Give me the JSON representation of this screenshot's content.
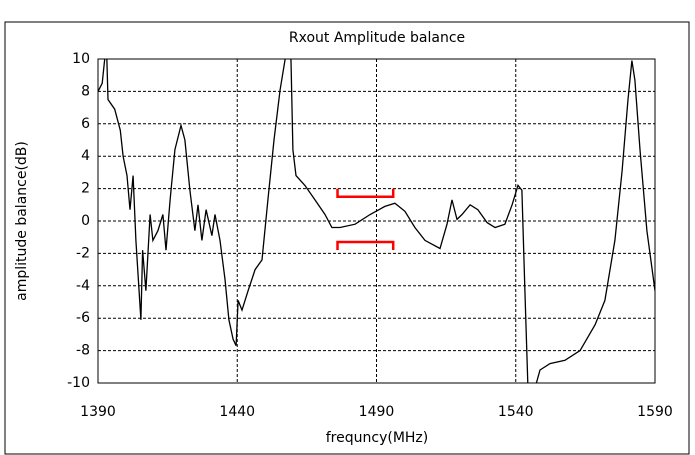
{
  "chart_data": {
    "type": "line",
    "title": "Rxout Amplitude balance",
    "x_label": "frequncy(MHz)",
    "y_label": "amplitude balance(dB)",
    "x": [
      1390,
      1391.5,
      1393,
      1393.6,
      1396,
      1398,
      1399,
      1400.4,
      1401.5,
      1402.6,
      1403.6,
      1405.4,
      1406,
      1407.2,
      1408.7,
      1409.7,
      1411.5,
      1413.3,
      1414.4,
      1415.9,
      1417.6,
      1419.8,
      1421.2,
      1423,
      1424.8,
      1425.9,
      1427.3,
      1428.8,
      1430.9,
      1432,
      1433.8,
      1435.6,
      1437,
      1438.5,
      1439.6,
      1440.3,
      1441.7,
      1443.9,
      1446.4,
      1448.9,
      1451,
      1453.2,
      1455.4,
      1457.1,
      1458.2,
      1459.3,
      1460,
      1461.1,
      1464.3,
      1467.9,
      1471.5,
      1474,
      1476.9,
      1482.3,
      1487.7,
      1493,
      1496.6,
      1500.2,
      1503.8,
      1507.4,
      1512.8,
      1515.3,
      1517.1,
      1518.9,
      1520.7,
      1523.6,
      1526.4,
      1529.7,
      1532.6,
      1536.1,
      1538.7,
      1540.8,
      1542.2,
      1543.3,
      1544.4,
      1545.8,
      1548.7,
      1552.3,
      1557.7,
      1563.1,
      1568.5,
      1572,
      1575.6,
      1578.2,
      1580.3,
      1581.7,
      1582.8,
      1584.6,
      1587.1,
      1590
    ],
    "values": [
      8,
      8.5,
      11,
      7.5,
      6.9,
      5.6,
      4,
      2.8,
      0.7,
      2.8,
      -1.2,
      -6.1,
      -1.8,
      -4.3,
      0.4,
      -1.2,
      -0.6,
      0.4,
      -1.8,
      1.3,
      4.4,
      5.9,
      5,
      1.9,
      -0.6,
      1,
      -1.2,
      0.7,
      -0.9,
      0.4,
      -1.2,
      -3.6,
      -6.1,
      -7.3,
      -7.7,
      -4.9,
      -5.5,
      -4.3,
      -3,
      -2.4,
      1.3,
      5,
      8.1,
      9.9,
      11.2,
      9.9,
      4.4,
      2.8,
      2.2,
      1.3,
      0.4,
      -0.4,
      -0.4,
      -0.2,
      0.4,
      0.9,
      1.1,
      0.6,
      -0.4,
      -1.2,
      -1.7,
      -0.2,
      1.3,
      0.1,
      0.4,
      1,
      0.7,
      -0.1,
      -0.4,
      -0.2,
      1,
      2.2,
      1.9,
      -4.3,
      -10.4,
      -11,
      -9.2,
      -8.8,
      -8.6,
      -8,
      -6.4,
      -4.9,
      -1.2,
      3.1,
      7.5,
      9.9,
      8.7,
      4.4,
      -0.6,
      -4.3
    ],
    "color": "#000000",
    "limits": {
      "x": [
        1476,
        1496
      ],
      "upper": 1.5,
      "lower": -1.3,
      "color": "#ff0000"
    },
    "xlim": [
      1390,
      1590
    ],
    "xticks": [
      1390,
      1440,
      1490,
      1540,
      1590
    ],
    "ylim": [
      -10,
      10
    ],
    "yticks": [
      -10,
      -8,
      -6,
      -4,
      -2,
      0,
      2,
      4,
      6,
      8,
      10
    ],
    "grid": true
  }
}
